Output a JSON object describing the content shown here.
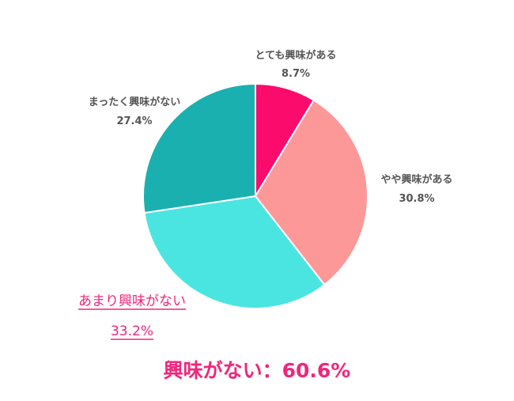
{
  "chart_data": {
    "type": "pie",
    "title": "",
    "slices": [
      {
        "label": "とても興味がある",
        "value": 8.7,
        "value_label": "8.7%",
        "color": "#fb0b6c",
        "highlight": false
      },
      {
        "label": "やや興味がある",
        "value": 30.8,
        "value_label": "30.8%",
        "color": "#fd9898",
        "highlight": false
      },
      {
        "label": "あまり興味がない",
        "value": 33.2,
        "value_label": "33.2%",
        "color": "#4be5e1",
        "highlight": true
      },
      {
        "label": "まったく興味がない",
        "value": 27.4,
        "value_label": "27.4%",
        "color": "#1bb0b0",
        "highlight": false
      }
    ],
    "start_angle_deg": 0,
    "direction": "clockwise",
    "label_color": "#555555",
    "highlight_color": "#f0267a"
  },
  "summary": {
    "text": "興味がない：60.6%",
    "color": "#f0267a"
  }
}
